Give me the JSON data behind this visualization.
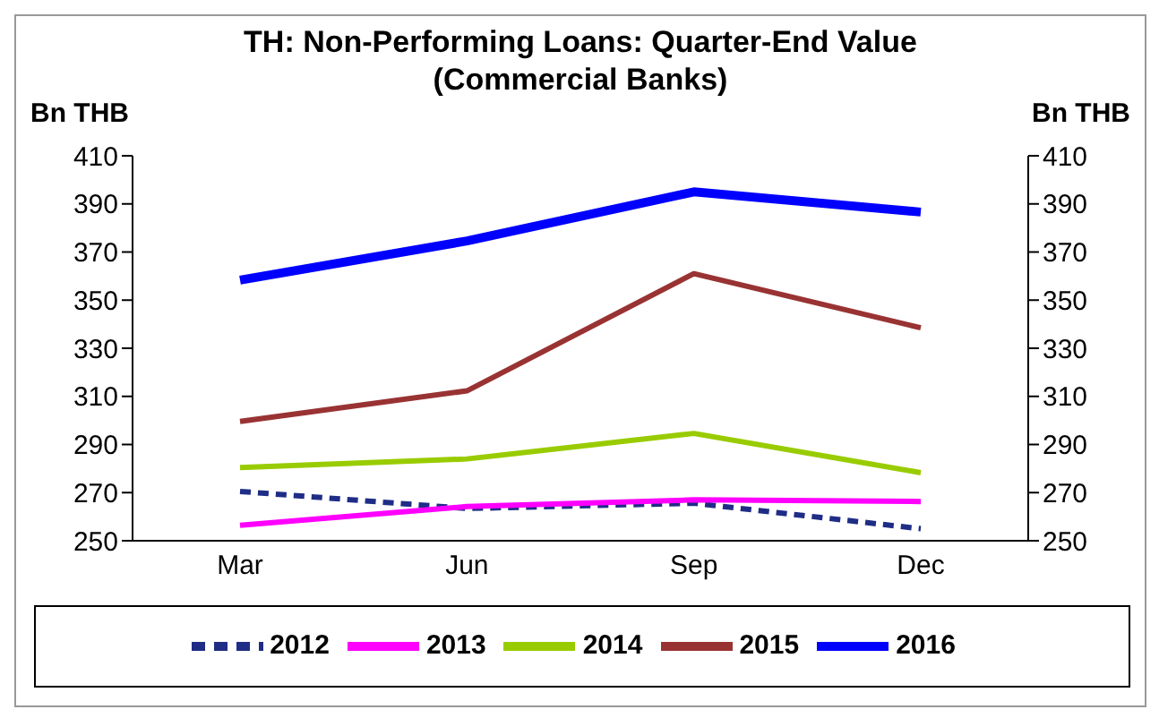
{
  "chart_data": {
    "type": "line",
    "title": "TH: Non-Performing Loans: Quarter-End Value",
    "subtitle": "(Commercial Banks)",
    "ylabel": "Bn THB",
    "y2label": "Bn THB",
    "categories": [
      "Mar",
      "Jun",
      "Sep",
      "Dec"
    ],
    "series": [
      {
        "name": "2012",
        "color": "#1f2d86",
        "values": [
          270.5,
          263.4,
          265.6,
          255
        ],
        "line_style": "dashed"
      },
      {
        "name": "2013",
        "color": "#ff00ff",
        "values": [
          256.4,
          264.2,
          267,
          266.3
        ]
      },
      {
        "name": "2014",
        "color": "#99cc00",
        "values": [
          280.4,
          284,
          294.6,
          278.3
        ]
      },
      {
        "name": "2015",
        "color": "#993333",
        "values": [
          299.6,
          312.3,
          361,
          338.5
        ]
      },
      {
        "name": "2016",
        "color": "#0000ff",
        "values": [
          358.3,
          374.6,
          395,
          386.6
        ]
      }
    ],
    "ylim": [
      250,
      410
    ],
    "yticks": [
      250,
      270,
      290,
      310,
      330,
      350,
      370,
      390,
      410
    ],
    "y2lim": [
      250,
      410
    ],
    "y2ticks": [
      250,
      270,
      290,
      310,
      330,
      350,
      370,
      390,
      410
    ],
    "legend": "bottom",
    "marker": "none"
  }
}
